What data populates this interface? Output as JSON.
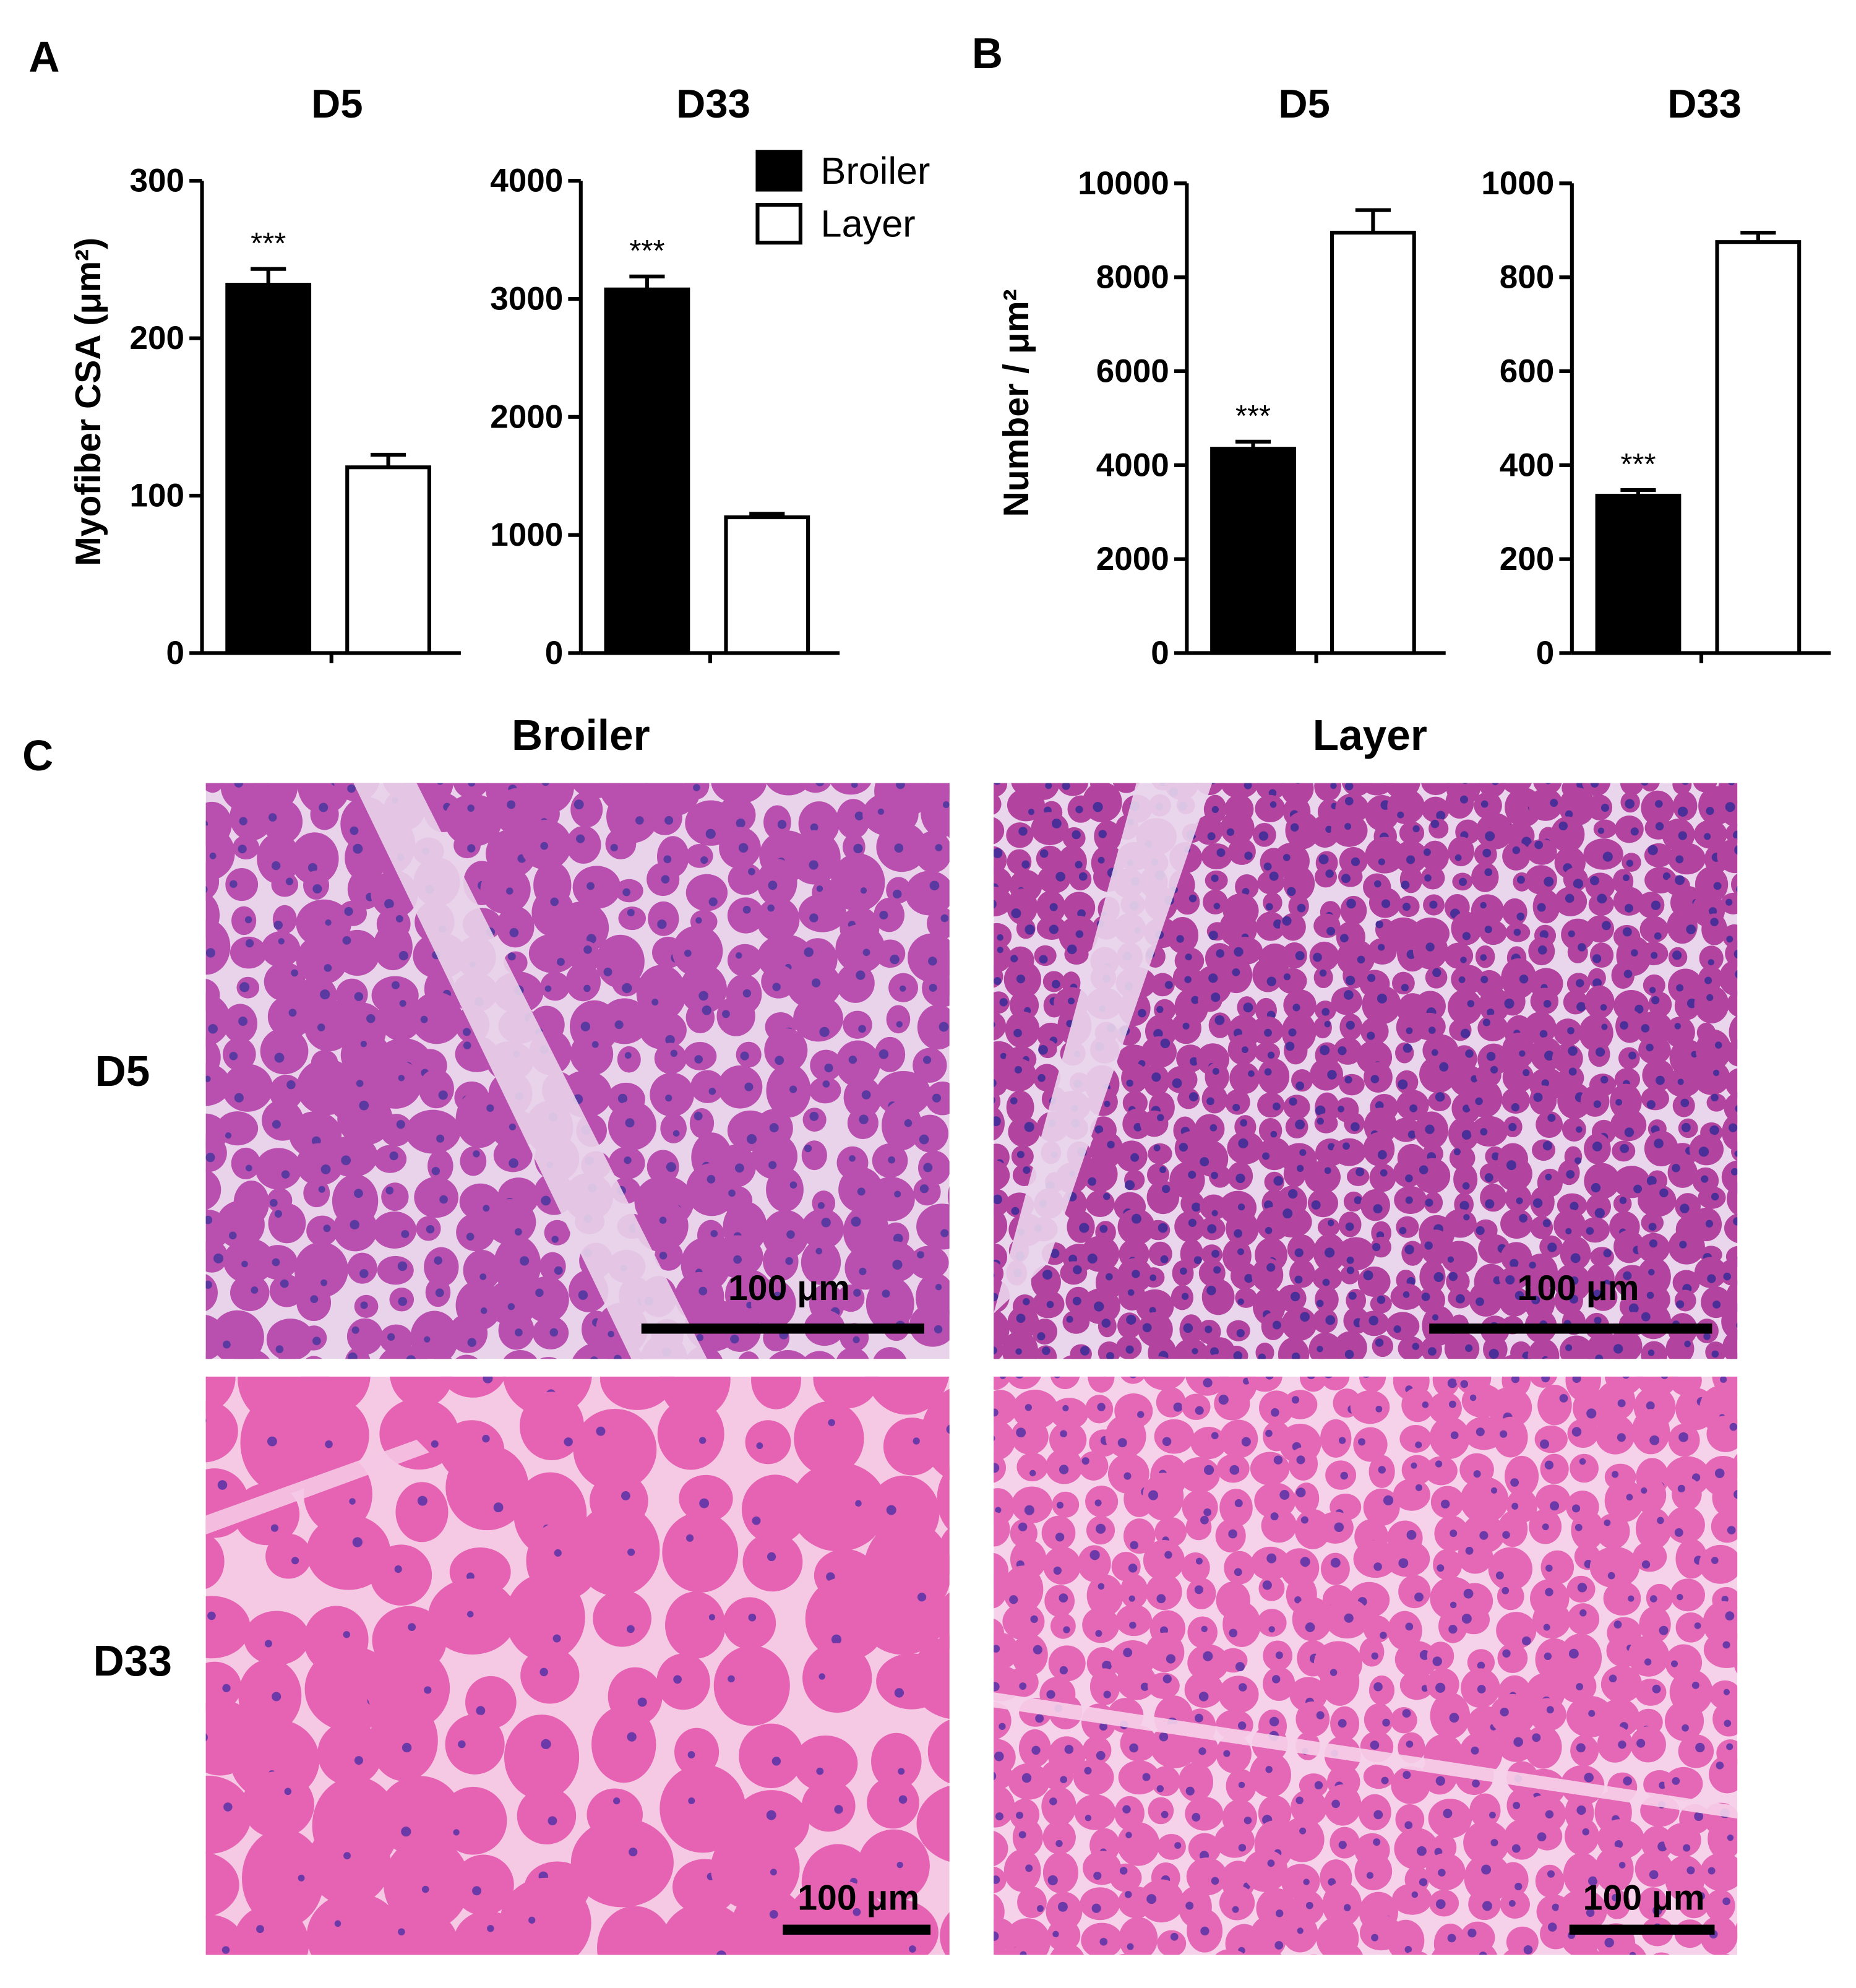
{
  "panel_labels": [
    "A",
    "B",
    "C"
  ],
  "chart_data": [
    {
      "type": "bar",
      "title": "D5",
      "y_label": "Myofiber CSA (μm²)",
      "categories": [
        null
      ],
      "series": [
        {
          "name": "Broiler",
          "color": "#000000",
          "values": [
            234
          ],
          "errors": [
            10
          ]
        },
        {
          "name": "Layer",
          "color": "#ffffff",
          "values": [
            118
          ],
          "errors": [
            8
          ]
        }
      ],
      "annotations": [
        "***"
      ],
      "ylim": [
        0,
        300
      ],
      "yticks": [
        0,
        100,
        200,
        300
      ],
      "grid": false,
      "legend": false
    },
    {
      "type": "bar",
      "title": "D33",
      "categories": [
        null
      ],
      "series": [
        {
          "name": "Broiler",
          "color": "#000000",
          "values": [
            3080
          ],
          "errors": [
            110
          ]
        },
        {
          "name": "Layer",
          "color": "#ffffff",
          "values": [
            1150
          ],
          "errors": [
            30
          ]
        }
      ],
      "annotations": [
        "***"
      ],
      "ylim": [
        0,
        4000
      ],
      "yticks": [
        0,
        1000,
        2000,
        3000,
        4000
      ],
      "grid": false,
      "legend": "upper right"
    },
    {
      "type": "bar",
      "title": "D5",
      "y_label": "Number / μm²",
      "categories": [
        null
      ],
      "series": [
        {
          "name": "Broiler",
          "color": "#000000",
          "values": [
            4350
          ],
          "errors": [
            150
          ]
        },
        {
          "name": "Layer",
          "color": "#ffffff",
          "values": [
            8950
          ],
          "errors": [
            480
          ]
        }
      ],
      "annotations": [
        "***"
      ],
      "ylim": [
        0,
        10000
      ],
      "yticks": [
        0,
        2000,
        4000,
        6000,
        8000,
        10000
      ],
      "grid": false,
      "legend": false
    },
    {
      "type": "bar",
      "title": "D33",
      "categories": [
        null
      ],
      "series": [
        {
          "name": "Broiler",
          "color": "#000000",
          "values": [
            335
          ],
          "errors": [
            12
          ]
        },
        {
          "name": "Layer",
          "color": "#ffffff",
          "values": [
            875
          ],
          "errors": [
            20
          ]
        }
      ],
      "annotations": [
        "***"
      ],
      "ylim": [
        0,
        1000
      ],
      "yticks": [
        0,
        200,
        400,
        600,
        800,
        1000
      ],
      "grid": false,
      "legend": false
    }
  ],
  "micrographs": {
    "columns": [
      "Broiler",
      "Layer"
    ],
    "rows": [
      "D5",
      "D33"
    ],
    "scale_bar": "100 μm"
  }
}
